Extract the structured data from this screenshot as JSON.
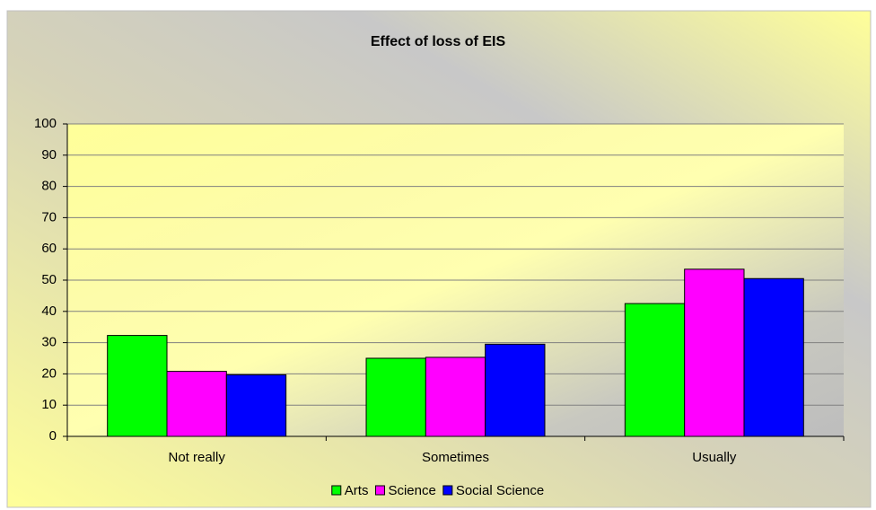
{
  "chart_data": {
    "type": "bar",
    "title": "Effect of loss of EIS",
    "categories": [
      "Not really",
      "Sometimes",
      "Usually"
    ],
    "series": [
      {
        "name": "Arts",
        "color": "#00ff00",
        "values": [
          32.3,
          25,
          42.5
        ]
      },
      {
        "name": "Science",
        "color": "#ff00ff",
        "values": [
          20.8,
          25.3,
          53.5
        ]
      },
      {
        "name": "Social Science",
        "color": "#0000ff",
        "values": [
          19.7,
          29.5,
          50.5
        ]
      }
    ],
    "ylim": [
      0,
      100
    ],
    "yticks": [
      0,
      10,
      20,
      30,
      40,
      50,
      60,
      70,
      80,
      90,
      100
    ],
    "grid": true,
    "legend": "bottom"
  }
}
